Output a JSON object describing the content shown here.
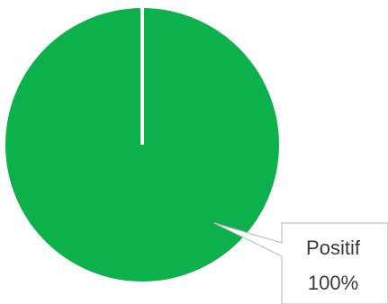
{
  "chart_data": {
    "type": "pie",
    "title": "",
    "slices": [
      {
        "label": "Positif",
        "value": 100,
        "percent_label": "100%",
        "color": "#0db14b"
      }
    ],
    "legend": "none",
    "data_labels": "callout"
  },
  "colors": {
    "slice_separator": "#ffffff",
    "callout_border": "#bfbfbf",
    "label_text": "#3a3a3a"
  }
}
